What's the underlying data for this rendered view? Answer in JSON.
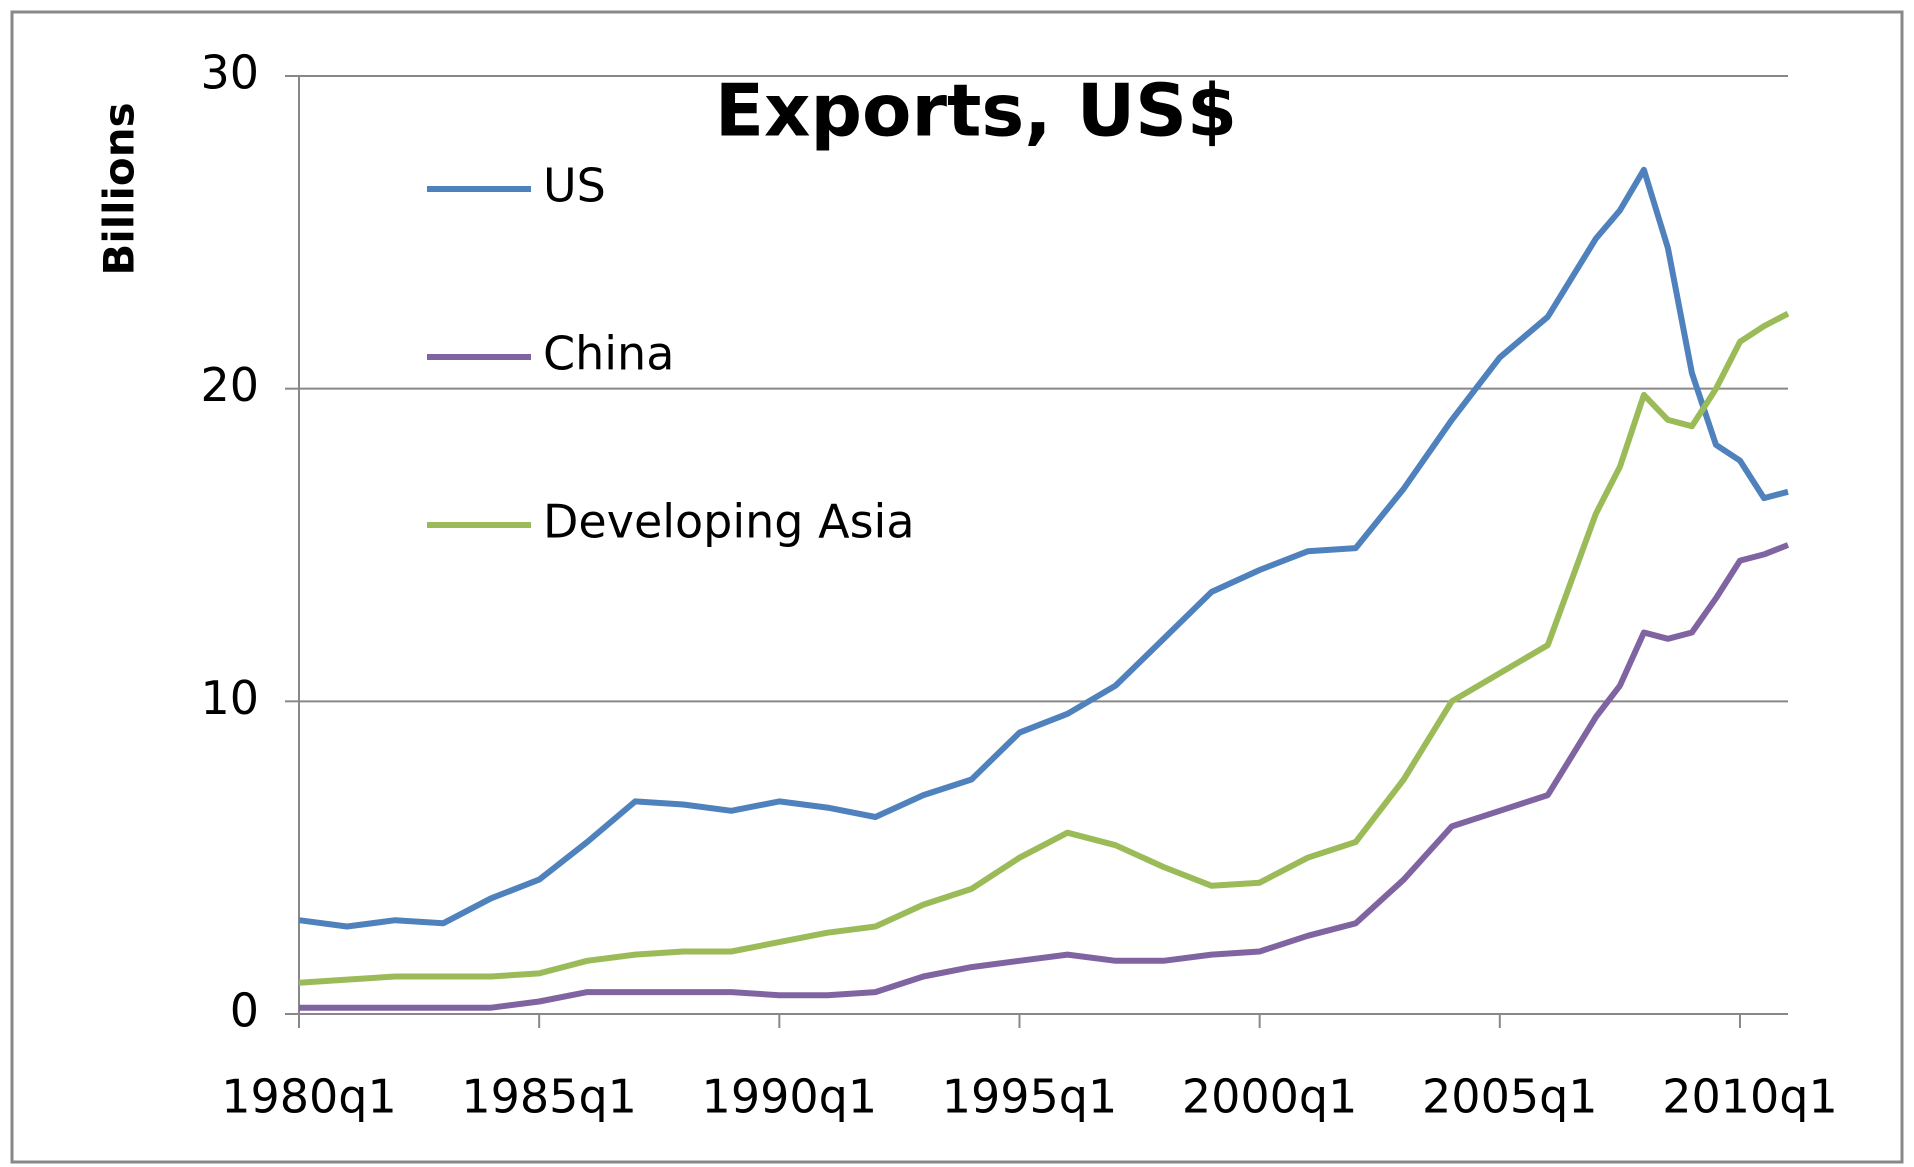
{
  "chart_data": {
    "type": "line",
    "title": "Exports, US$",
    "y_label": "Billions",
    "x": [
      1980,
      1981,
      1982,
      1983,
      1984,
      1985,
      1986,
      1987,
      1988,
      1989,
      1990,
      1991,
      1992,
      1993,
      1994,
      1995,
      1996,
      1997,
      1998,
      1999,
      2000,
      2001,
      2002,
      2003,
      2004,
      2005,
      2006,
      2007,
      2007.5,
      2008,
      2008.5,
      2009,
      2009.5,
      2010,
      2010.5,
      2011
    ],
    "series": [
      {
        "name": "US",
        "color": "#4f81bd",
        "values": [
          3.0,
          2.8,
          3.0,
          2.9,
          3.7,
          4.3,
          5.5,
          6.8,
          6.7,
          6.5,
          6.8,
          6.6,
          6.3,
          7.0,
          7.5,
          9.0,
          9.6,
          10.5,
          12.0,
          13.5,
          14.2,
          14.8,
          14.9,
          16.8,
          19.0,
          21.0,
          22.3,
          24.8,
          25.7,
          27.0,
          24.5,
          20.5,
          18.2,
          17.7,
          16.5,
          16.7
        ]
      },
      {
        "name": "China",
        "color": "#8064a2",
        "values": [
          0.2,
          0.2,
          0.2,
          0.2,
          0.2,
          0.4,
          0.7,
          0.7,
          0.7,
          0.7,
          0.6,
          0.6,
          0.7,
          1.2,
          1.5,
          1.7,
          1.9,
          1.7,
          1.7,
          1.9,
          2.0,
          2.5,
          2.9,
          4.3,
          6.0,
          6.5,
          7.0,
          9.5,
          10.5,
          12.2,
          12.0,
          12.2,
          13.3,
          14.5,
          14.7,
          15.0
        ]
      },
      {
        "name": "Developing Asia",
        "color": "#9bbb59",
        "values": [
          1.0,
          1.1,
          1.2,
          1.2,
          1.2,
          1.3,
          1.7,
          1.9,
          2.0,
          2.0,
          2.3,
          2.6,
          2.8,
          3.5,
          4.0,
          5.0,
          5.8,
          5.4,
          4.7,
          4.1,
          4.2,
          5.0,
          5.5,
          7.5,
          10.0,
          10.9,
          11.8,
          16.0,
          17.5,
          19.8,
          19.0,
          18.8,
          20.0,
          21.5,
          22.0,
          22.4
        ]
      }
    ],
    "xlim": [
      1980,
      2011
    ],
    "xticks": [
      {
        "value": 1980,
        "label": "1980q1"
      },
      {
        "value": 1985,
        "label": "1985q1"
      },
      {
        "value": 1990,
        "label": "1990q1"
      },
      {
        "value": 1995,
        "label": "1995q1"
      },
      {
        "value": 2000,
        "label": "2000q1"
      },
      {
        "value": 2005,
        "label": "2005q1"
      },
      {
        "value": 2010,
        "label": "2010q1"
      }
    ],
    "ylim": [
      0,
      30
    ],
    "yticks": [
      0,
      10,
      20,
      30
    ],
    "grid": true,
    "legend": "upper left"
  }
}
